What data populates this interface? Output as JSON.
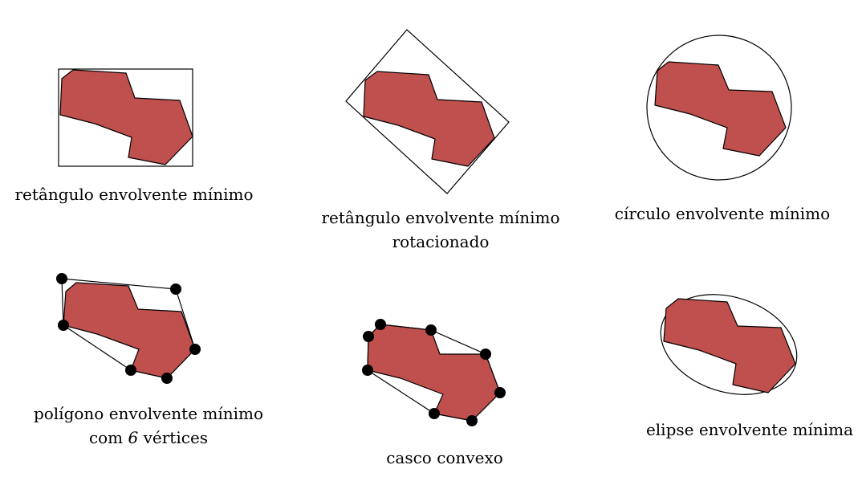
{
  "colors": {
    "shape_fill": "#c0504d",
    "stroke": "#000000",
    "background": "#ffffff"
  },
  "panels": [
    {
      "caption_lines": [
        "retângulo envolvente mínimo"
      ]
    },
    {
      "caption_lines": [
        "retângulo envolvente mínimo",
        "rotacionado"
      ]
    },
    {
      "caption_lines": [
        "círculo envolvente mínimo"
      ]
    },
    {
      "caption_line1": "polígono envolvente mínimo",
      "caption_line2_pre": "com",
      "caption_line2_num": "6",
      "caption_line2_post": "vértices"
    },
    {
      "caption_lines": [
        "casco convexo"
      ]
    },
    {
      "caption_lines": [
        "elipse envolvente mínima"
      ]
    }
  ]
}
